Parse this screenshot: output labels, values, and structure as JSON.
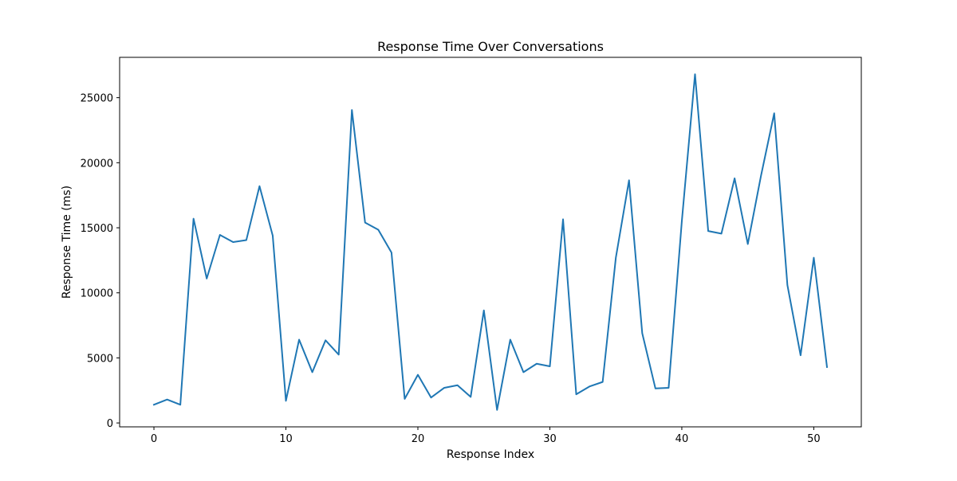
{
  "chart_data": {
    "type": "line",
    "title": "Response Time Over Conversations",
    "xlabel": "Response Index",
    "ylabel": "Response Time (ms)",
    "xlim": [
      -2.6,
      53.6
    ],
    "ylim": [
      -300,
      28100
    ],
    "xticks": [
      0,
      10,
      20,
      30,
      40,
      50
    ],
    "yticks": [
      0,
      5000,
      10000,
      15000,
      20000,
      25000
    ],
    "grid": false,
    "line_color": "#1f77b4",
    "x": [
      0,
      1,
      2,
      3,
      4,
      5,
      6,
      7,
      8,
      9,
      10,
      11,
      12,
      13,
      14,
      15,
      16,
      17,
      18,
      19,
      20,
      21,
      22,
      23,
      24,
      25,
      26,
      27,
      28,
      29,
      30,
      31,
      32,
      33,
      34,
      35,
      36,
      37,
      38,
      39,
      40,
      41,
      42,
      43,
      44,
      45,
      46,
      47,
      48,
      49,
      50,
      51
    ],
    "series": [
      {
        "values": [
          1400,
          1800,
          1400,
          15700,
          11100,
          14450,
          13900,
          14050,
          18200,
          14400,
          1700,
          6400,
          3900,
          6350,
          5250,
          24050,
          15400,
          14850,
          13100,
          1850,
          3700,
          1950,
          2700,
          2900,
          2000,
          8650,
          1000,
          6400,
          3900,
          4550,
          4350,
          15650,
          2200,
          2800,
          3150,
          12700,
          18650,
          6900,
          2650,
          2700,
          15500,
          26800,
          14750,
          14550,
          18800,
          13750,
          19000,
          23800,
          10600,
          5200,
          12700,
          4300
        ]
      }
    ]
  }
}
